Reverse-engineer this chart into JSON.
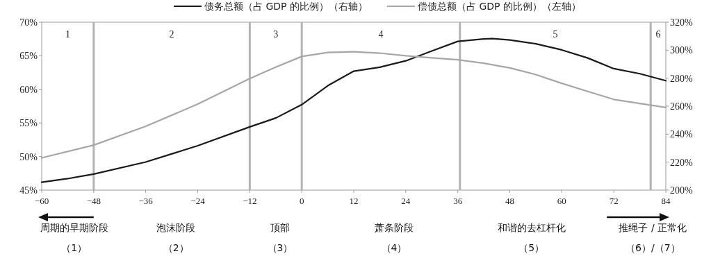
{
  "chart_data": {
    "type": "line",
    "xlim": [
      -60,
      84
    ],
    "xticks": [
      -60,
      -48,
      -36,
      -24,
      -12,
      0,
      12,
      24,
      36,
      48,
      60,
      72,
      84
    ],
    "ylim": [
      45,
      70
    ],
    "yticks": [
      {
        "value": 45,
        "label": "45%"
      },
      {
        "value": 50,
        "label": "50%"
      },
      {
        "value": 55,
        "label": "55%"
      },
      {
        "value": 60,
        "label": "60%"
      },
      {
        "value": 65,
        "label": "65%"
      },
      {
        "value": 70,
        "label": "70%"
      }
    ],
    "y2lim": [
      200,
      320
    ],
    "y2ticks": [
      {
        "value": 200,
        "label": "200%"
      },
      {
        "value": 220,
        "label": "220%"
      },
      {
        "value": 240,
        "label": "240%"
      },
      {
        "value": 260,
        "label": "260%"
      },
      {
        "value": 280,
        "label": "280%"
      },
      {
        "value": 300,
        "label": "300%"
      },
      {
        "value": 320,
        "label": "320%"
      }
    ],
    "legend": "top",
    "series": [
      {
        "name": "债务总额（占 GDP 的比例）（右轴）",
        "color": "#1a1a1a",
        "axis": "y2",
        "x": [
          -60,
          -54,
          -48,
          -36,
          -24,
          -12,
          -6,
          0,
          6,
          12,
          18,
          24,
          30,
          36,
          42,
          44,
          48,
          54,
          60,
          66,
          72,
          78,
          84
        ],
        "values": [
          205.6,
          208.2,
          211.5,
          220.1,
          231.7,
          245.2,
          251.5,
          261.1,
          274.6,
          285,
          287.8,
          292.4,
          299.4,
          306.3,
          308,
          308.3,
          307.3,
          304.6,
          300.2,
          294.4,
          286.8,
          283.2,
          278.2
        ]
      },
      {
        "name": "偿债总额（占 GDP 的比例）（左轴）",
        "color": "#a6a6a6",
        "x": [
          -60,
          -48,
          -36,
          -24,
          -12,
          -6,
          0,
          6,
          12,
          18,
          24,
          30,
          36,
          42,
          48,
          54,
          60,
          66,
          72,
          78,
          84
        ],
        "values": [
          49.8,
          51.7,
          54.5,
          57.8,
          61.6,
          63.3,
          64.9,
          65.5,
          65.6,
          65.4,
          65.0,
          64.7,
          64.4,
          63.9,
          63.2,
          62.2,
          60.9,
          59.7,
          58.5,
          57.9,
          57.3
        ]
      }
    ],
    "ref_lines": [
      {
        "axis": "x",
        "value": -48,
        "color": "#b3b3b3"
      },
      {
        "axis": "x",
        "value": -12,
        "color": "#b3b3b3"
      },
      {
        "axis": "x",
        "value": 0,
        "color": "#b3b3b3"
      },
      {
        "axis": "x",
        "value": 36.5,
        "color": "#b3b3b3"
      },
      {
        "axis": "x",
        "value": 80.5,
        "color": "#b3b3b3"
      }
    ],
    "annotations": [
      "1",
      "2",
      "3",
      "4",
      "5",
      "6",
      "周期的早期阶段",
      "（1）",
      "泡沫阶段",
      "（2）",
      "顶部",
      "（3）",
      "萧条阶段",
      "（4）",
      "和谐的去杠杆化",
      "（5）",
      "推绳子 / 正常化",
      "（6）/（7）"
    ]
  }
}
